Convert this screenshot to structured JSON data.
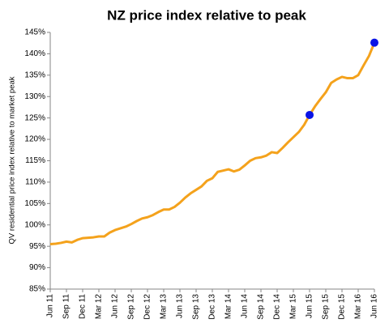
{
  "chart_data": {
    "type": "line",
    "title": "NZ price index relative to peak",
    "ylabel": "QV residential price index relative to market peak",
    "categories": [
      "Jun 11",
      null,
      null,
      "Sep 11",
      null,
      null,
      "Dec 11",
      null,
      null,
      "Mar 12",
      null,
      null,
      "Jun 12",
      null,
      null,
      "Sep 12",
      null,
      null,
      "Dec 12",
      null,
      null,
      "Mar 13",
      null,
      null,
      "Jun 13",
      null,
      null,
      "Sep 13",
      null,
      null,
      "Dec 13",
      null,
      null,
      "Mar 14",
      null,
      null,
      "Jun 14",
      null,
      null,
      "Sep 14",
      null,
      null,
      "Dec 14",
      null,
      null,
      "Mar 15",
      null,
      null,
      "Jun 15",
      null,
      null,
      "Sep 15",
      null,
      null,
      "Dec 15",
      null,
      null,
      "Mar 16",
      null,
      null,
      "Jun 16"
    ],
    "series": [
      {
        "color": "#f4a21c",
        "values": [
          95.5,
          95.6,
          95.8,
          96.1,
          95.9,
          96.5,
          96.9,
          97.0,
          97.1,
          97.3,
          97.3,
          98.2,
          98.8,
          99.2,
          99.6,
          100.2,
          100.9,
          101.5,
          101.8,
          102.3,
          103.0,
          103.6,
          103.6,
          104.2,
          105.2,
          106.4,
          107.4,
          108.2,
          109.0,
          110.3,
          110.9,
          112.4,
          112.7,
          113.0,
          112.5,
          112.9,
          113.9,
          115.0,
          115.6,
          115.8,
          116.2,
          117.0,
          116.8,
          118.0,
          119.3,
          120.5,
          121.7,
          123.4,
          125.7,
          127.7,
          129.4,
          131.0,
          133.2,
          134.0,
          134.6,
          134.3,
          134.3,
          135.0,
          137.3,
          139.5,
          142.6
        ]
      }
    ],
    "markers": {
      "color": "#0a14e6",
      "indices": [
        48,
        60
      ]
    },
    "ylim": [
      85,
      145
    ],
    "yticks": [
      {
        "value": 85,
        "label": "85%"
      },
      {
        "value": 90,
        "label": "90%"
      },
      {
        "value": 95,
        "label": "95%"
      },
      {
        "value": 100,
        "label": "100%"
      },
      {
        "value": 105,
        "label": "105%"
      },
      {
        "value": 110,
        "label": "110%"
      },
      {
        "value": 115,
        "label": "115%"
      },
      {
        "value": 120,
        "label": "120%"
      },
      {
        "value": 125,
        "label": "125%"
      },
      {
        "value": 130,
        "label": "130%"
      },
      {
        "value": 135,
        "label": "135%"
      },
      {
        "value": 140,
        "label": "140%"
      },
      {
        "value": 145,
        "label": "145%"
      }
    ],
    "grid": false
  }
}
